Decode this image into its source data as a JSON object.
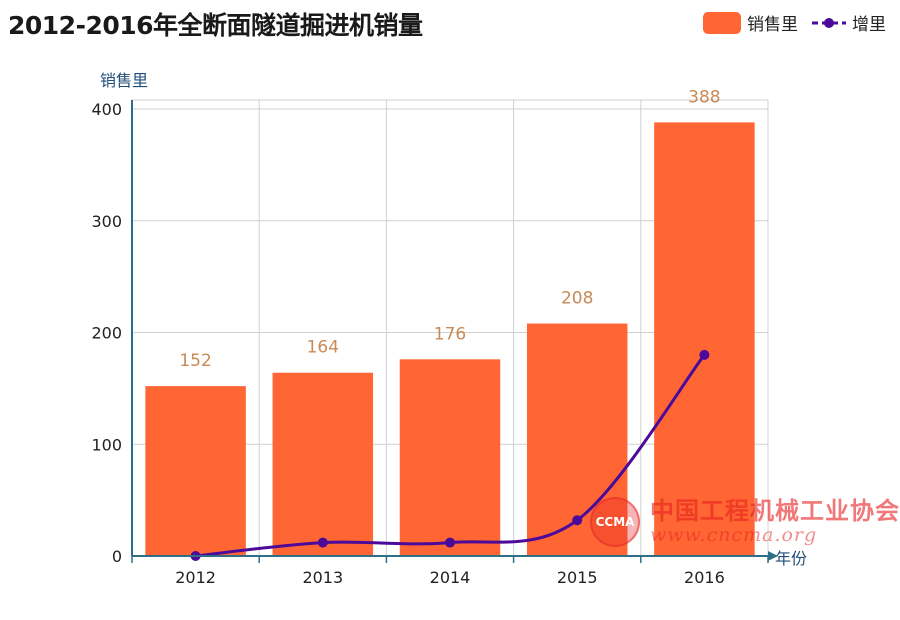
{
  "chart_data": {
    "type": "bar",
    "title": "2012-2016年全断面隧道掘进机销量",
    "xlabel": "年份",
    "ylabel": "销售里",
    "categories": [
      "2012",
      "2013",
      "2014",
      "2015",
      "2016"
    ],
    "ylim": [
      0,
      400
    ],
    "yticks": [
      0,
      100,
      200,
      300,
      400
    ],
    "grid": true,
    "legend_position": "top-right",
    "series": [
      {
        "name": "销售里",
        "type": "bar",
        "values": [
          152,
          164,
          176,
          208,
          388
        ],
        "color": "#ff6633",
        "data_labels": [
          "152",
          "164",
          "176",
          "208",
          "388"
        ]
      },
      {
        "name": "增里",
        "type": "line",
        "values": [
          0,
          12,
          12,
          32,
          180
        ],
        "color": "#4b0a99"
      }
    ]
  },
  "watermark": {
    "logo_text": "CCMA",
    "name": "中国工程机械工业协会",
    "url": "www.cncma.org"
  }
}
